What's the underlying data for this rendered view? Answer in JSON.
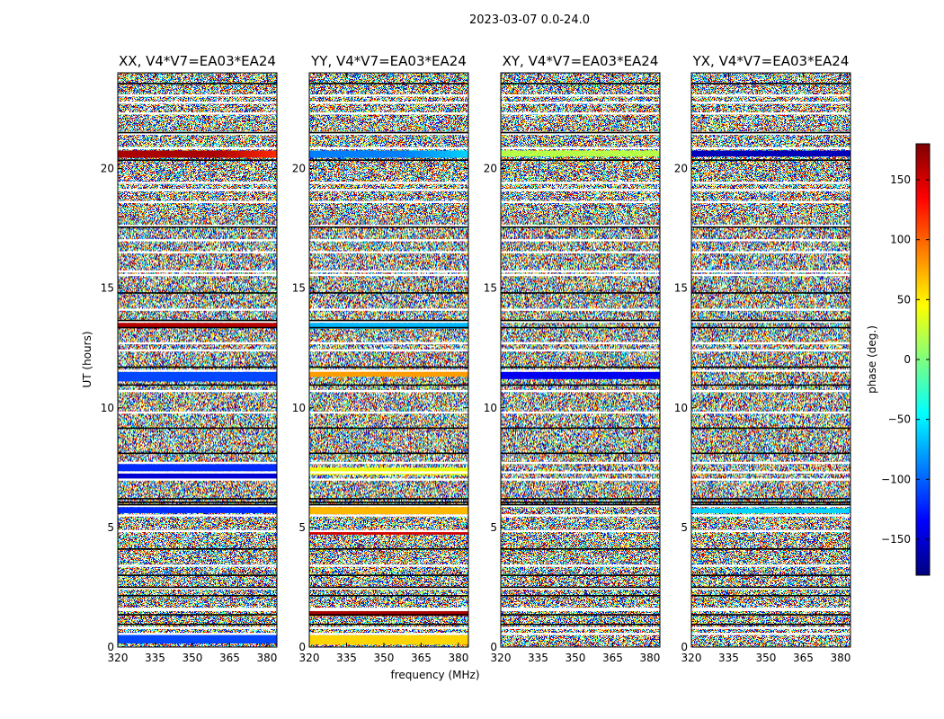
{
  "chart_data": {
    "type": "heatmap",
    "suptitle": "2023-03-07 0.0-24.0",
    "xlabel": "frequency (MHz)",
    "ylabel": "UT (hours)",
    "xlim": [
      320,
      384
    ],
    "ylim": [
      0,
      24
    ],
    "xticks": [
      "320",
      "335",
      "350",
      "365",
      "380"
    ],
    "xtick_values": [
      320,
      335,
      350,
      365,
      380
    ],
    "yticks": [
      "0",
      "5",
      "10",
      "15",
      "20"
    ],
    "ytick_values": [
      0,
      5,
      10,
      15,
      20
    ],
    "colorbar": {
      "label": "phase (deg.)",
      "range": [
        -180,
        180
      ],
      "ticks": [
        "−150",
        "−100",
        "−50",
        "0",
        "50",
        "100",
        "150"
      ],
      "tick_values": [
        -150,
        -100,
        -50,
        0,
        50,
        100,
        150
      ],
      "colormap": "jet",
      "colors": [
        "#00007f",
        "#0000ff",
        "#007fff",
        "#00ffff",
        "#7fff7f",
        "#ffff00",
        "#ff7f00",
        "#ff0000",
        "#7f0000"
      ]
    },
    "panels": [
      {
        "title": "XX, V4*V7=EA03*EA24",
        "coherent_bands": [
          {
            "t": [
              20.45,
              20.75
            ],
            "phase": 165,
            "phase_hi": 120
          },
          {
            "t": [
              13.35,
              13.55
            ],
            "phase": 160
          },
          {
            "t": [
              11.1,
              11.5
            ],
            "phase": -110
          },
          {
            "t": [
              7.35,
              7.65
            ],
            "phase": -120
          },
          {
            "t": [
              7.0,
              7.25
            ],
            "phase": -150
          },
          {
            "t": [
              5.6,
              5.85
            ],
            "phase": -120
          },
          {
            "t": [
              0.15,
              0.55
            ],
            "phase": -110
          }
        ]
      },
      {
        "title": "YY, V4*V7=EA03*EA24",
        "coherent_bands": [
          {
            "t": [
              20.45,
              20.75
            ],
            "phase": -90,
            "phase_hi": -60
          },
          {
            "t": [
              13.3,
              13.55
            ],
            "phase": -70
          },
          {
            "t": [
              11.3,
              11.6
            ],
            "phase": 80
          },
          {
            "t": [
              7.2,
              7.5
            ],
            "phase": 40
          },
          {
            "t": [
              5.55,
              5.85
            ],
            "phase": 70
          },
          {
            "t": [
              4.7,
              4.85
            ],
            "phase": 150
          },
          {
            "t": [
              1.3,
              1.5
            ],
            "phase": 165
          },
          {
            "t": [
              0.1,
              0.5
            ],
            "phase": 60
          }
        ]
      },
      {
        "title": "XY, V4*V7=EA03*EA24",
        "coherent_bands": [
          {
            "t": [
              20.5,
              20.75
            ],
            "phase": 20
          },
          {
            "t": [
              11.2,
              11.5
            ],
            "phase": -140
          }
        ]
      },
      {
        "title": "YX, V4*V7=EA03*EA24",
        "coherent_bands": [
          {
            "t": [
              20.5,
              20.75
            ],
            "phase": -160
          },
          {
            "t": [
              5.6,
              5.8
            ],
            "phase": -60
          }
        ]
      }
    ],
    "white_gaps": [
      0.55,
      0.8,
      1.55,
      1.6,
      2.45,
      3.4,
      4.85,
      5.5,
      5.9,
      7.0,
      7.3,
      7.7,
      9.8,
      10.7,
      11.55,
      12.4,
      12.7,
      13.6,
      14.1,
      15.55,
      15.7,
      16.5,
      17.0,
      17.6,
      18.6,
      19.1,
      19.4,
      20.85,
      21.45,
      21.5,
      22.3,
      22.75,
      23.05
    ],
    "black_lines": [
      0.95,
      1.35,
      2.15,
      2.5,
      3.0,
      4.1,
      5.95,
      6.05,
      6.2,
      8.1,
      9.15,
      10.95,
      11.7,
      13.35,
      13.65,
      14.8,
      17.55,
      20.35,
      21.5,
      23.55
    ]
  }
}
